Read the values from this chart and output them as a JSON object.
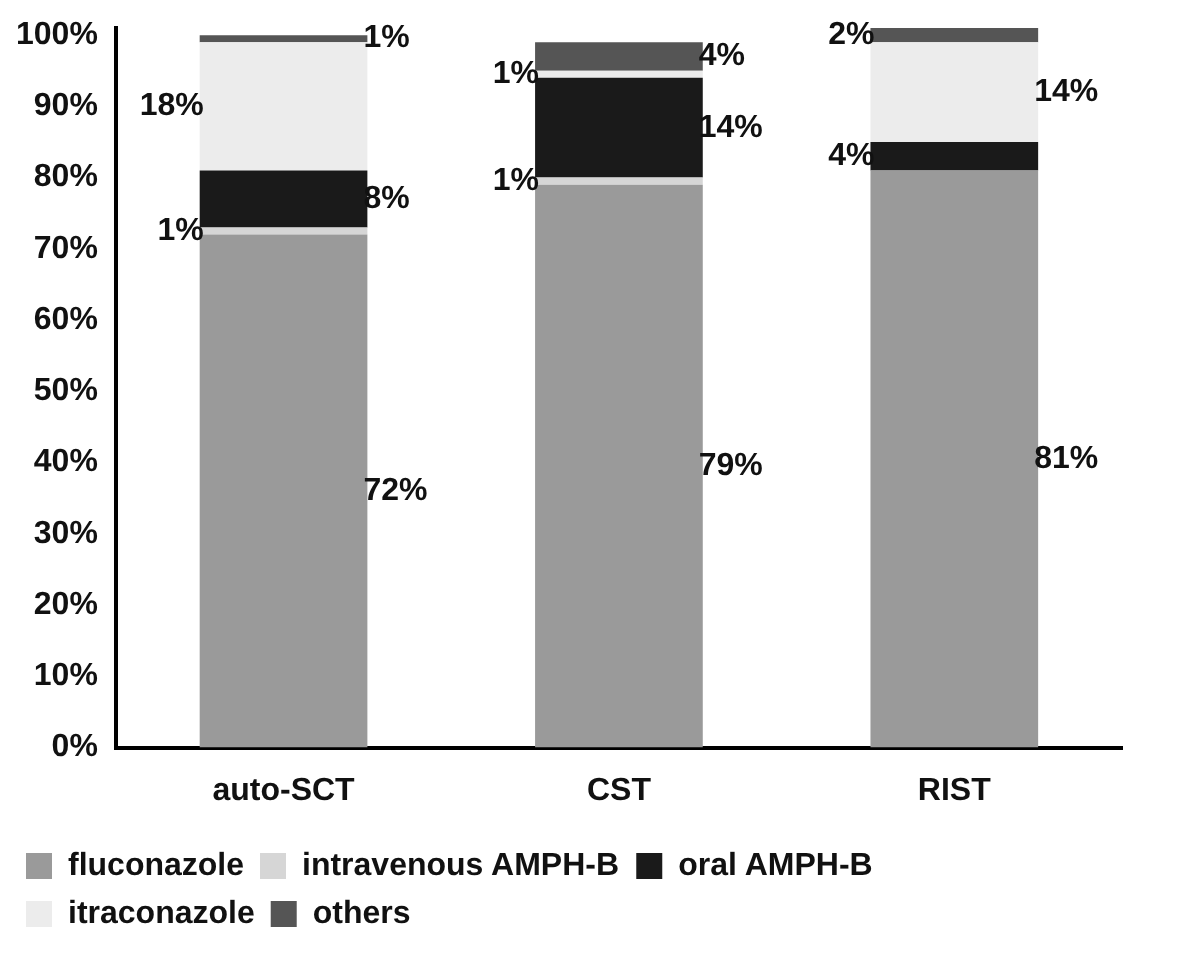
{
  "chart_data": {
    "type": "bar",
    "stacked": true,
    "categories": [
      "auto-SCT",
      "CST",
      "RIST"
    ],
    "series": [
      {
        "name": "fluconazole",
        "color": "#9a9a9a",
        "values": [
          72,
          79,
          81
        ],
        "value_labels": [
          "72%",
          "79%",
          "81%"
        ]
      },
      {
        "name": "intravenous AMPH-B",
        "color": "#d6d6d6",
        "values": [
          1,
          1,
          null
        ],
        "value_labels": [
          "1%",
          "1%",
          null
        ]
      },
      {
        "name": "oral AMPH-B",
        "color": "#1a1a1a",
        "values": [
          8,
          14,
          4
        ],
        "value_labels": [
          "8%",
          "14%",
          "4%"
        ]
      },
      {
        "name": "itraconazole",
        "color": "#ececec",
        "values": [
          18,
          1,
          14
        ],
        "value_labels": [
          "18%",
          "1%",
          "14%"
        ]
      },
      {
        "name": "others",
        "color": "#555555",
        "values": [
          1,
          4,
          2
        ],
        "value_labels": [
          "1%",
          "4%",
          "2%"
        ]
      }
    ],
    "ylim": [
      0,
      101
    ],
    "yticks": [
      {
        "value": 0,
        "label": "0%"
      },
      {
        "value": 10,
        "label": "10%"
      },
      {
        "value": 20,
        "label": "20%"
      },
      {
        "value": 30,
        "label": "30%"
      },
      {
        "value": 40,
        "label": "40%"
      },
      {
        "value": 50,
        "label": "50%"
      },
      {
        "value": 60,
        "label": "60%"
      },
      {
        "value": 70,
        "label": "70%"
      },
      {
        "value": 80,
        "label": "80%"
      },
      {
        "value": 90,
        "label": "90%"
      },
      {
        "value": 100,
        "label": "100%"
      }
    ],
    "grid": false,
    "legend": "bottom"
  }
}
